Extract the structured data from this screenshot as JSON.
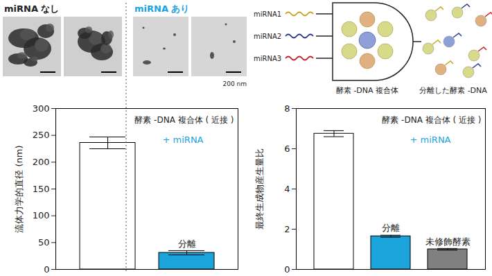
{
  "tem": {
    "labels": [
      "miRNA なし",
      "miRNA あり"
    ],
    "scale_bar": "200 nm"
  },
  "schematic": {
    "inputs": [
      "miRNA1",
      "miRNA2",
      "miRNA3"
    ],
    "colors": [
      "#c9a227",
      "#2b3b8f",
      "#c8202a"
    ],
    "labels": [
      "酵素 -DNA 複合体",
      "分離した酵素 -DNA"
    ]
  },
  "chart_data": [
    {
      "type": "bar",
      "ylabel": "流体力学的直径 (nm)",
      "categories": [
        null,
        null
      ],
      "values": [
        236,
        31
      ],
      "errors": [
        11,
        4
      ],
      "colors": [
        "#ffffff",
        "#1ba3dc"
      ],
      "ylim": [
        0,
        300
      ],
      "yticks": [
        0,
        50,
        100,
        150,
        200,
        250,
        300
      ],
      "tick_labels": "y",
      "bar_labels": [
        null,
        "分離"
      ],
      "annotations": [
        "酵素 -DNA 複合体 ( 近接 )",
        "+ miRNA"
      ]
    },
    {
      "type": "bar",
      "ylabel": "最終生成物産生量比",
      "categories": [
        null,
        null,
        null
      ],
      "values": [
        6.75,
        1.65,
        1.0
      ],
      "errors": [
        0.15,
        0.05,
        0.04
      ],
      "colors": [
        "#ffffff",
        "#1ba3dc",
        "#808080"
      ],
      "ylim": [
        0,
        8
      ],
      "yticks": [
        0,
        2,
        4,
        6,
        8
      ],
      "tick_labels": "y",
      "bar_labels": [
        null,
        "分離",
        "未修飾酵素"
      ],
      "annotations": [
        "酵素 -DNA 複合体 ( 近接 )",
        "+ miRNA"
      ]
    }
  ]
}
